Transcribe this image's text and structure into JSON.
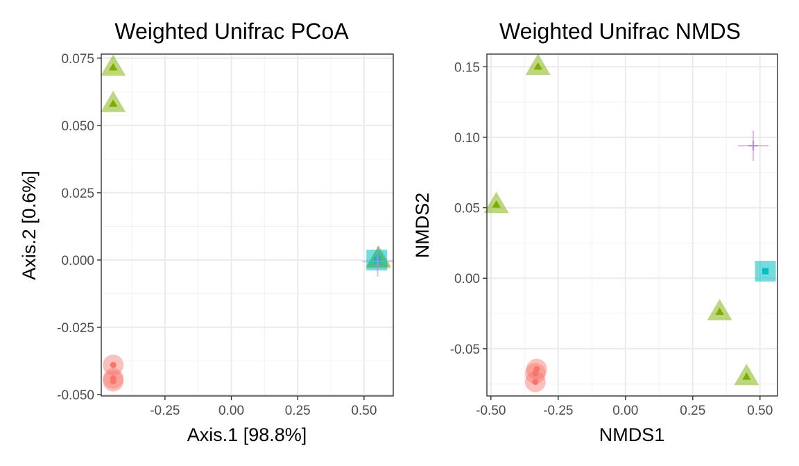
{
  "chart_data": [
    {
      "type": "scatter",
      "title": "Weighted Unifrac PCoA",
      "xlabel": "Axis.1   [98.8%]",
      "ylabel": "Axis.2   [0.6%]",
      "xlim": [
        -0.49,
        0.61
      ],
      "ylim": [
        -0.0505,
        0.0765
      ],
      "x_ticks": [
        -0.25,
        0,
        0.25,
        0.5
      ],
      "x_tick_labels": [
        "-0.25",
        "0.00",
        "0.25",
        "0.50"
      ],
      "y_ticks": [
        -0.05,
        -0.025,
        0,
        0.025,
        0.05,
        0.075
      ],
      "y_tick_labels": [
        "-0.050",
        "-0.025",
        "0.000",
        "0.025",
        "0.050",
        "0.075"
      ],
      "grid": true,
      "legend": "none",
      "series": [
        {
          "shape": "circle",
          "color": "#F8766D",
          "points": [
            {
              "x": -0.445,
              "y": -0.039
            },
            {
              "x": -0.445,
              "y": -0.044
            },
            {
              "x": -0.445,
              "y": -0.045
            }
          ]
        },
        {
          "shape": "triangle",
          "color": "#7CAE00",
          "points": [
            {
              "x": -0.445,
              "y": 0.0715
            },
            {
              "x": -0.445,
              "y": 0.058
            },
            {
              "x": 0.555,
              "y": 0.0005
            },
            {
              "x": 0.552,
              "y": 0.0
            }
          ]
        },
        {
          "shape": "square",
          "color": "#00BFC4",
          "points": [
            {
              "x": 0.548,
              "y": 0.0
            }
          ]
        },
        {
          "shape": "cross",
          "color": "#C77CFF",
          "points": [
            {
              "x": 0.551,
              "y": -0.0005
            }
          ]
        }
      ]
    },
    {
      "type": "scatter",
      "title": "Weighted Unifrac NMDS",
      "xlabel": "NMDS1",
      "ylabel": "NMDS2",
      "xlim": [
        -0.515,
        0.565
      ],
      "ylim": [
        -0.0835,
        0.159
      ],
      "x_ticks": [
        -0.5,
        -0.25,
        0,
        0.25,
        0.5
      ],
      "x_tick_labels": [
        "-0.50",
        "-0.25",
        "0.00",
        "0.25",
        "0.50"
      ],
      "y_ticks": [
        -0.05,
        0,
        0.05,
        0.1,
        0.15
      ],
      "y_tick_labels": [
        "-0.05",
        "0.00",
        "0.05",
        "0.10",
        "0.15"
      ],
      "grid": true,
      "legend": "none",
      "series": [
        {
          "shape": "circle",
          "color": "#F8766D",
          "points": [
            {
              "x": -0.33,
              "y": -0.0645
            },
            {
              "x": -0.335,
              "y": -0.0675
            },
            {
              "x": -0.335,
              "y": -0.0735
            }
          ]
        },
        {
          "shape": "triangle",
          "color": "#7CAE00",
          "points": [
            {
              "x": -0.325,
              "y": 0.15
            },
            {
              "x": -0.48,
              "y": 0.052
            },
            {
              "x": 0.35,
              "y": -0.024
            },
            {
              "x": 0.45,
              "y": -0.07
            }
          ]
        },
        {
          "shape": "square",
          "color": "#00BFC4",
          "points": [
            {
              "x": 0.52,
              "y": 0.005
            }
          ]
        },
        {
          "shape": "cross",
          "color": "#C77CFF",
          "points": [
            {
              "x": 0.475,
              "y": 0.094
            }
          ]
        }
      ]
    }
  ]
}
